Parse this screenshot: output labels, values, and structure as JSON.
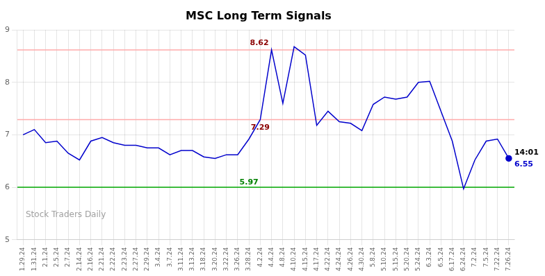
{
  "chart_data": {
    "type": "line",
    "title": "MSC Long Term Signals",
    "categories": [
      "1.29.24",
      "1.31.24",
      "2.1.24",
      "2.5.24",
      "2.7.24",
      "2.14.24",
      "2.16.24",
      "2.21.24",
      "2.22.24",
      "2.23.24",
      "2.27.24",
      "2.29.24",
      "3.4.24",
      "3.7.24",
      "3.11.24",
      "3.13.24",
      "3.18.24",
      "3.20.24",
      "3.22.24",
      "3.26.24",
      "3.28.24",
      "4.2.24",
      "4.4.24",
      "4.8.24",
      "4.10.24",
      "4.15.24",
      "4.17.24",
      "4.22.24",
      "4.24.24",
      "4.26.24",
      "4.30.24",
      "5.8.24",
      "5.10.24",
      "5.15.24",
      "5.20.24",
      "5.24.24",
      "6.3.24",
      "6.5.24",
      "6.17.24",
      "6.24.24",
      "7.2.24",
      "7.5.24",
      "7.22.24",
      "7.26.24"
    ],
    "values": [
      7.0,
      7.1,
      6.85,
      6.88,
      6.65,
      6.52,
      6.88,
      6.95,
      6.85,
      6.8,
      6.8,
      6.75,
      6.75,
      6.62,
      6.7,
      6.7,
      6.58,
      6.55,
      6.62,
      6.62,
      6.92,
      7.29,
      8.62,
      7.6,
      8.68,
      8.52,
      7.18,
      7.45,
      7.25,
      7.22,
      7.08,
      7.58,
      7.72,
      7.68,
      7.72,
      8.0,
      8.02,
      7.45,
      6.88,
      5.97,
      6.52,
      6.88,
      6.92,
      6.55
    ],
    "color": "#0000cc",
    "ylim": [
      5,
      9
    ],
    "yticks": [
      5,
      6,
      7,
      8,
      9
    ],
    "grid": true,
    "hlines": [
      {
        "value": 6.0,
        "color": "#00aa00"
      },
      {
        "value": 8.62,
        "color": "#ffaaaa"
      },
      {
        "value": 7.29,
        "color": "#ffaaaa"
      }
    ],
    "annotations": [
      {
        "text": "8.62",
        "category": "4.4.24",
        "value": 8.62,
        "color": "darkred",
        "position": "above-left"
      },
      {
        "text": "7.29",
        "category": "4.2.24",
        "value": 7.29,
        "color": "darkred",
        "position": "below"
      },
      {
        "text": "5.97",
        "category": "3.28.24",
        "value": 5.97,
        "color": "green",
        "position": "above"
      },
      {
        "text": "14:01",
        "category": "7.26.24",
        "value": 6.55,
        "color": "black",
        "position": "above-right"
      },
      {
        "text": "6.55",
        "category": "7.26.24",
        "value": 6.55,
        "color": "#0000cc",
        "position": "below-right",
        "marker": "circle"
      }
    ],
    "watermark": "Stock Traders Daily"
  }
}
